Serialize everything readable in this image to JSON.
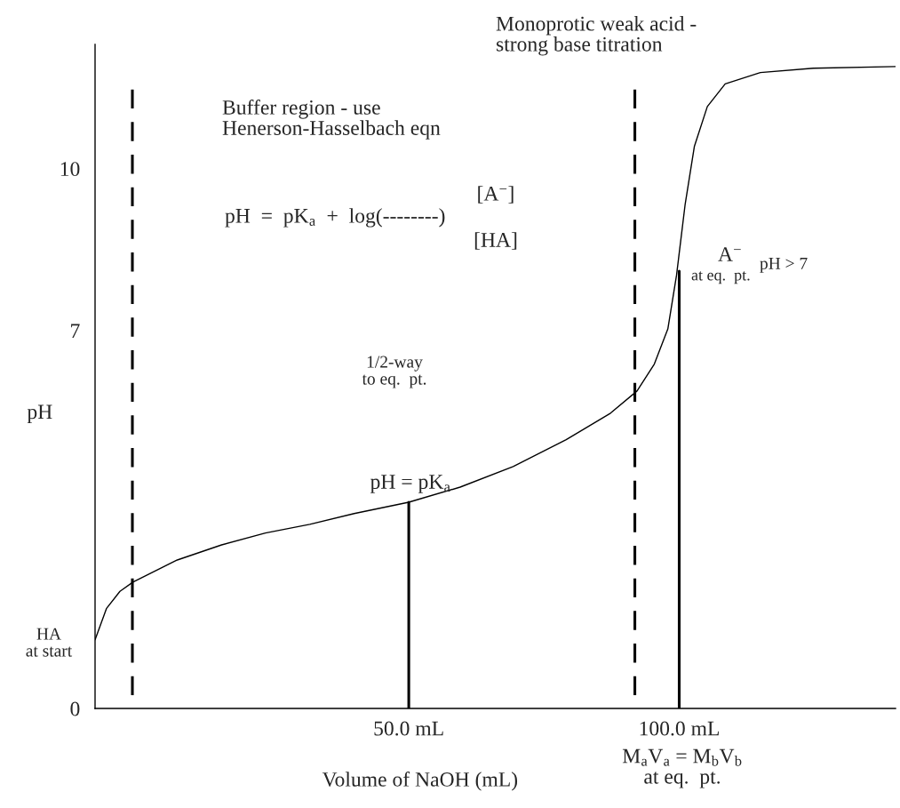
{
  "chart_data": {
    "type": "line",
    "title": "Monoprotic weak acid -\nstrong base titration",
    "xlabel": "Volume of NaOH (mL)",
    "ylabel": "pH",
    "xlim": [
      -8,
      140
    ],
    "ylim": [
      0,
      12.3
    ],
    "xticks": [
      {
        "value": 50,
        "label": "50.0 mL"
      },
      {
        "value": 100,
        "label": "100.0 mL"
      }
    ],
    "yticks": [
      0,
      7,
      10
    ],
    "grid": false,
    "legend": false,
    "marker": "none",
    "series": [
      {
        "color": "#000000",
        "line_style": "solid",
        "x": [
          -8.0,
          -5.9,
          -3.4,
          -1.0,
          7.2,
          15.4,
          23.5,
          31.7,
          39.9,
          50,
          59.5,
          69.3,
          79.1,
          87.3,
          92.2,
          95.4,
          97.9,
          99.5,
          101.1,
          102.8,
          105.2,
          108.5,
          115,
          124.8,
          140
        ],
        "values": [
          1.27,
          1.85,
          2.17,
          2.34,
          2.75,
          3.03,
          3.25,
          3.41,
          3.61,
          3.82,
          4.1,
          4.48,
          4.98,
          5.47,
          5.88,
          6.38,
          7.03,
          8.02,
          9.34,
          10.41,
          11.15,
          11.57,
          11.78,
          11.86,
          11.89
        ]
      },
      {
        "color": "#000000",
        "line_style": "solid",
        "x": [
          50,
          50
        ],
        "values": [
          0,
          3.82
        ]
      },
      {
        "color": "#000000",
        "line_style": "solid",
        "x": [
          100,
          100
        ],
        "values": [
          0,
          8.1
        ]
      }
    ],
    "ref_lines": [
      {
        "axis": "x",
        "value": -1.1,
        "color": "#000000",
        "line_style": "dashed"
      },
      {
        "axis": "x",
        "value": 91.8,
        "color": "#000000",
        "line_style": "dashed"
      }
    ],
    "annotations": [
      "Buffer region - use\nHenerson-Hasselbach eqn",
      "pH  =  pK$_{a}$  +  log(--------)",
      "[A$^{−}$]",
      "[HA]",
      "1/2-way\nto eq.  pt.",
      "pH = pK$_{a}$",
      "A$^{−}$",
      "at eq.  pt.",
      "pH > 7",
      "HA\nat start",
      "M$_{a}$V$_{a}$ = M$_{b}$V$_{b}$\nat eq.  pt."
    ]
  }
}
